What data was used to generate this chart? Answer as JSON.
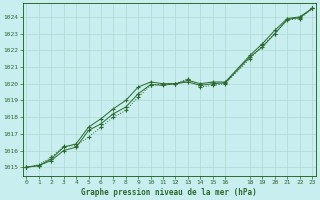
{
  "title": "Graphe pression niveau de la mer (hPa)",
  "bg_color": "#c8eef0",
  "grid_color": "#b0d8d0",
  "line_color": "#2d6b2d",
  "ylim": [
    1014.5,
    1024.8
  ],
  "xlim": [
    -0.3,
    23.3
  ],
  "yticks": [
    1015,
    1016,
    1017,
    1018,
    1019,
    1020,
    1021,
    1022,
    1023,
    1024
  ],
  "xticks": [
    0,
    1,
    2,
    3,
    4,
    5,
    6,
    7,
    8,
    9,
    10,
    11,
    12,
    13,
    14,
    15,
    16,
    18,
    19,
    20,
    21,
    22,
    23
  ],
  "x_vals": [
    0,
    1,
    2,
    3,
    4,
    5,
    6,
    7,
    8,
    9,
    10,
    11,
    12,
    13,
    14,
    15,
    16,
    18,
    19,
    20,
    21,
    22,
    23
  ],
  "series1": [
    1015.0,
    1015.1,
    1015.5,
    1016.2,
    1016.4,
    1017.4,
    1017.9,
    1018.5,
    1019.0,
    1019.8,
    1020.1,
    1020.0,
    1020.0,
    1020.2,
    1020.0,
    1020.1,
    1020.1,
    1021.7,
    1022.4,
    1023.2,
    1023.9,
    1024.0,
    1024.5
  ],
  "series2": [
    1015.0,
    1015.15,
    1015.6,
    1016.25,
    1016.3,
    1016.8,
    1017.4,
    1018.0,
    1018.4,
    1019.2,
    1019.9,
    1020.0,
    1020.0,
    1020.3,
    1019.8,
    1019.9,
    1020.0,
    1021.5,
    1022.3,
    1023.0,
    1023.8,
    1023.9,
    1024.5
  ],
  "series3": [
    1015.0,
    1015.1,
    1015.4,
    1016.0,
    1016.2,
    1017.2,
    1017.6,
    1018.2,
    1018.6,
    1019.4,
    1019.95,
    1019.9,
    1020.0,
    1020.1,
    1019.9,
    1020.0,
    1020.05,
    1021.6,
    1022.2,
    1023.0,
    1023.85,
    1023.95,
    1024.5
  ],
  "figw": 3.2,
  "figh": 2.0,
  "dpi": 100
}
